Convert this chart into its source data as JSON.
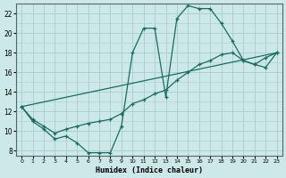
{
  "xlabel": "Humidex (Indice chaleur)",
  "bg_color": "#cce8e8",
  "grid_color": "#aacccc",
  "line_color": "#1a6b60",
  "xlim": [
    -0.5,
    23.5
  ],
  "ylim": [
    7.5,
    23.0
  ],
  "xticks": [
    0,
    1,
    2,
    3,
    4,
    5,
    6,
    7,
    8,
    9,
    10,
    11,
    12,
    13,
    14,
    15,
    16,
    17,
    18,
    19,
    20,
    21,
    22,
    23
  ],
  "yticks": [
    8,
    10,
    12,
    14,
    16,
    18,
    20,
    22
  ],
  "line1_x": [
    0,
    1,
    2,
    3,
    4,
    5,
    6,
    7,
    8,
    9,
    10,
    11,
    12,
    13,
    14,
    15,
    16,
    17,
    18,
    19,
    20,
    21,
    22,
    23
  ],
  "line1_y": [
    12.5,
    11.0,
    10.2,
    9.2,
    9.5,
    8.8,
    7.8,
    7.8,
    7.8,
    10.5,
    18.0,
    20.5,
    20.5,
    13.5,
    21.5,
    22.8,
    22.5,
    22.5,
    21.0,
    19.2,
    17.2,
    16.8,
    16.5,
    18.0
  ],
  "line2_x": [
    0,
    1,
    2,
    3,
    4,
    5,
    6,
    7,
    8,
    9,
    10,
    11,
    12,
    13,
    14,
    15,
    16,
    17,
    18,
    19,
    20,
    21,
    22,
    23
  ],
  "line2_y": [
    12.5,
    11.2,
    10.5,
    9.8,
    10.2,
    10.5,
    10.8,
    11.0,
    11.2,
    11.8,
    12.8,
    13.2,
    13.8,
    14.2,
    15.2,
    16.0,
    16.8,
    17.2,
    17.8,
    18.0,
    17.2,
    16.8,
    17.5,
    18.0
  ],
  "line3_x": [
    0,
    23
  ],
  "line3_y": [
    12.5,
    18.0
  ]
}
